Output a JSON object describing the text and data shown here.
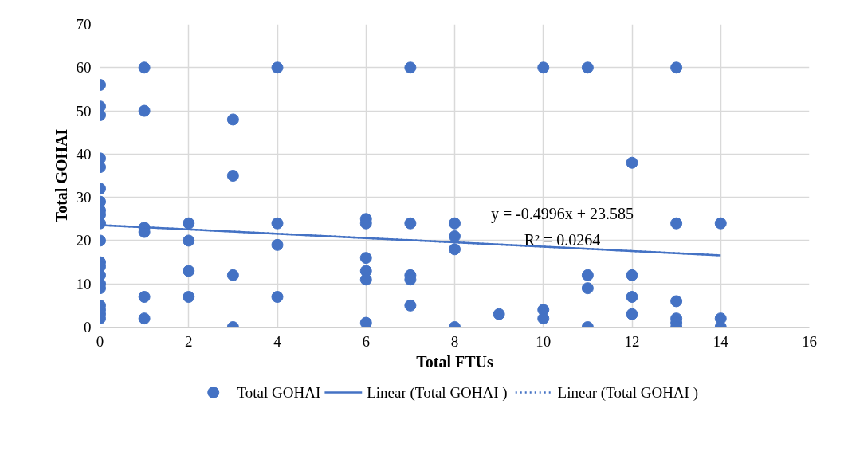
{
  "chart_data": {
    "type": "scatter",
    "xlabel": "Total FTUs",
    "ylabel": "Total GOHAI",
    "xlim": [
      0,
      16
    ],
    "xticks": [
      0,
      2,
      4,
      6,
      8,
      10,
      12,
      14,
      16
    ],
    "ylim": [
      0,
      70
    ],
    "yticks": [
      0,
      10,
      20,
      30,
      40,
      50,
      60,
      70
    ],
    "grid": true,
    "legend": "bottom",
    "series": [
      {
        "name": "Total GOHAI",
        "marker": "circle",
        "color": "#4472c4",
        "x": [
          0,
          0,
          0,
          0,
          0,
          0,
          0,
          0,
          0,
          0,
          0,
          0,
          0,
          0,
          0,
          0,
          0,
          0,
          0,
          0,
          1,
          1,
          1,
          1,
          1,
          1,
          2,
          2,
          2,
          2,
          3,
          3,
          3,
          3,
          4,
          4,
          4,
          4,
          6,
          6,
          6,
          6,
          6,
          6,
          7,
          7,
          7,
          7,
          7,
          8,
          8,
          8,
          8,
          9,
          10,
          10,
          10,
          11,
          11,
          11,
          11,
          12,
          12,
          12,
          12,
          13,
          13,
          13,
          13,
          13,
          13,
          14,
          14,
          14
        ],
        "values": [
          56,
          51,
          49,
          39,
          37,
          32,
          29,
          27,
          26,
          24,
          20,
          15,
          14,
          12,
          10,
          9,
          5,
          4,
          3,
          2,
          60,
          50,
          23,
          22,
          7,
          2,
          24,
          20,
          13,
          7,
          48,
          35,
          12,
          0,
          60,
          24,
          19,
          7,
          25,
          24,
          16,
          13,
          11,
          1,
          60,
          24,
          12,
          11,
          5,
          24,
          21,
          18,
          0,
          3,
          60,
          4,
          2,
          60,
          12,
          9,
          0,
          38,
          12,
          7,
          3,
          60,
          24,
          6,
          2,
          1,
          0,
          24,
          2,
          0
        ]
      },
      {
        "name": "Linear (Total GOHAI )",
        "type": "line",
        "line_style": "solid",
        "color": "#4472c4",
        "x": [
          0,
          14
        ],
        "values": [
          23.6,
          16.6
        ]
      },
      {
        "name": "Linear (Total GOHAI )",
        "type": "line",
        "line_style": "dotted",
        "color": "#4472c4",
        "x": [
          0,
          14
        ],
        "values": [
          23.6,
          16.6
        ]
      }
    ],
    "annotations": [
      "y = -0.4996x + 23.585",
      "R² = 0.0264"
    ]
  }
}
